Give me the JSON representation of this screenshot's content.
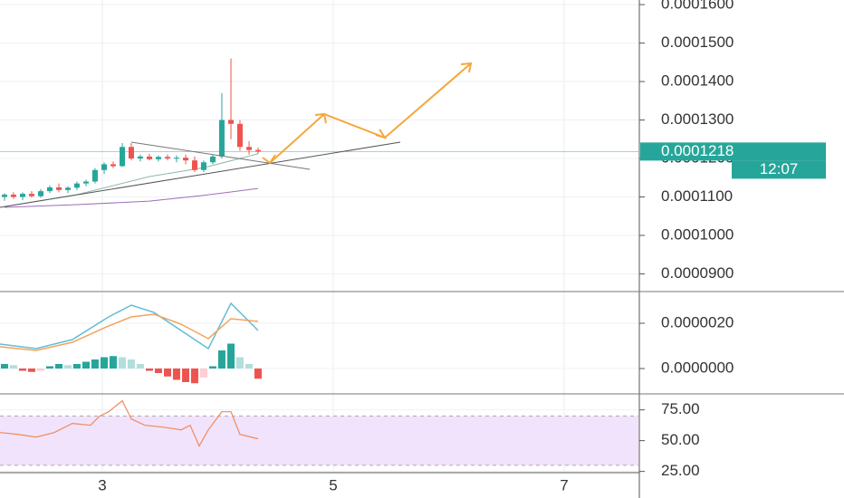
{
  "chart_data": [
    {
      "type": "candlestick",
      "x": [
        2.153,
        2.231,
        2.31,
        2.388,
        2.467,
        2.545,
        2.624,
        2.702,
        2.78,
        2.859,
        2.937,
        3.016,
        3.094,
        3.173,
        3.251,
        3.329,
        3.408,
        3.486,
        3.565,
        3.643,
        3.722,
        3.8,
        3.878,
        3.957,
        4.035,
        4.114,
        4.192,
        4.271,
        4.349
      ],
      "open": [
        0.00011,
        0.0001106,
        0.00011,
        0.0001108,
        0.0001102,
        0.0001115,
        0.0001125,
        0.0001118,
        0.0001124,
        0.0001135,
        0.000114,
        0.000117,
        0.0001185,
        0.000118,
        0.000123,
        0.00012,
        0.0001205,
        0.0001198,
        0.0001204,
        0.00012,
        0.0001202,
        0.0001195,
        0.000117,
        0.000119,
        0.0001205,
        0.00013,
        0.000129,
        0.000123,
        0.0001222
      ],
      "high": [
        0.000111,
        0.0001112,
        0.0001112,
        0.0001115,
        0.000112,
        0.000113,
        0.0001135,
        0.0001128,
        0.000114,
        0.0001145,
        0.0001175,
        0.000119,
        0.0001192,
        0.000124,
        0.000124,
        0.000121,
        0.0001212,
        0.0001208,
        0.000121,
        0.0001208,
        0.000121,
        0.0001205,
        0.0001195,
        0.000121,
        0.000137,
        0.000146,
        0.00013,
        0.0001245,
        0.0001228
      ],
      "low": [
        0.000109,
        0.0001095,
        0.0001092,
        0.0001098,
        0.0001098,
        0.000111,
        0.0001112,
        0.000111,
        0.0001118,
        0.0001128,
        0.0001135,
        0.000116,
        0.0001175,
        0.0001178,
        0.0001195,
        0.0001192,
        0.0001195,
        0.0001192,
        0.0001195,
        0.000119,
        0.0001185,
        0.0001165,
        0.0001165,
        0.0001185,
        0.00012,
        0.000125,
        0.000122,
        0.000121,
        0.0001212
      ],
      "close": [
        0.0001106,
        0.00011,
        0.0001108,
        0.0001102,
        0.0001115,
        0.0001125,
        0.0001118,
        0.0001124,
        0.0001135,
        0.000114,
        0.000117,
        0.0001185,
        0.000118,
        0.000123,
        0.00012,
        0.0001205,
        0.0001198,
        0.0001204,
        0.00012,
        0.0001202,
        0.0001195,
        0.000117,
        0.000119,
        0.0001205,
        0.00013,
        0.000129,
        0.000123,
        0.0001222,
        0.0001218
      ],
      "up_color": "#26a69a",
      "down_color": "#ef5350",
      "lines": [
        {
          "color": "#9c6fb8",
          "x": [
            2.153,
            2.78,
            3.408,
            3.878,
            4.349
          ],
          "values": [
            0.0001073,
            0.000108,
            0.0001089,
            0.0001104,
            0.0001122
          ]
        },
        {
          "color": "#8fb8a8",
          "x": [
            2.153,
            2.78,
            3.408,
            3.878,
            4.349
          ],
          "values": [
            0.0001075,
            0.0001106,
            0.0001153,
            0.0001176,
            0.0001212
          ]
        }
      ],
      "xlim": [
        2.114,
        7.643
      ],
      "xticks": [
        3,
        5,
        7
      ],
      "ylim": [
        8.54e-05,
        0.0001612
      ],
      "yticks": [
        {
          "value": 9e-05,
          "label": "0.0000900"
        },
        {
          "value": 0.0001,
          "label": "0.0001000"
        },
        {
          "value": 0.00011,
          "label": "0.0001100"
        },
        {
          "value": 0.00012,
          "label": "0.0001200"
        },
        {
          "value": 0.00013,
          "label": "0.0001300"
        },
        {
          "value": 0.00014,
          "label": "0.0001400"
        },
        {
          "value": 0.00015,
          "label": "0.0001500"
        },
        {
          "value": 0.00016,
          "label": "0.0001600"
        }
      ],
      "grid": true,
      "last_price": 0.0001218,
      "last_color": "#26a69a",
      "countdown": "12:07"
    },
    {
      "type": "macd",
      "x": [
        2.114,
        2.427,
        2.741,
        3.055,
        3.251,
        3.447,
        3.682,
        3.918,
        4.114,
        4.349
      ],
      "series": [
        {
          "color": "#62bcd6",
          "values": [
            1.08e-06,
            8.8e-07,
            1.28e-06,
            2.28e-06,
            2.8e-06,
            2.48e-06,
            1.68e-06,
            8.8e-07,
            2.88e-06,
            1.68e-06
          ]
        },
        {
          "color": "#f5a25d",
          "values": [
            9.6e-07,
            8e-07,
            1.16e-06,
            1.88e-06,
            2.28e-06,
            2.4e-06,
            1.96e-06,
            1.32e-06,
            2.2e-06,
            2.08e-06
          ]
        }
      ],
      "histogram": {
        "x": [
          2.153,
          2.231,
          2.31,
          2.388,
          2.467,
          2.545,
          2.624,
          2.702,
          2.78,
          2.859,
          2.937,
          3.016,
          3.094,
          3.173,
          3.251,
          3.329,
          3.408,
          3.486,
          3.565,
          3.643,
          3.722,
          3.8,
          3.878,
          3.957,
          4.035,
          4.114,
          4.192,
          4.271,
          4.349
        ],
        "values": [
          2e-07,
          1.5e-07,
          -1e-07,
          -1.5e-07,
          -1e-07,
          1e-07,
          2e-07,
          1.5e-07,
          2e-07,
          3e-07,
          4e-07,
          5e-07,
          5.5e-07,
          5e-07,
          4e-07,
          2e-07,
          -1e-07,
          -2e-07,
          -3.5e-07,
          -5e-07,
          -6e-07,
          -6.5e-07,
          -4e-07,
          1e-07,
          8e-07,
          1.1e-06,
          5e-07,
          2e-07,
          -4.5e-07
        ],
        "colors": [
          "#26a69a",
          "#b2dfdb",
          "#ef5350",
          "#ffcdd2"
        ]
      },
      "xlim": [
        2.114,
        7.643
      ],
      "xticks": [
        3,
        5,
        7
      ],
      "ylim": [
        -1.12e-06,
        3.4e-06
      ],
      "yticks": [
        {
          "value": 0,
          "label": "0.0000000"
        },
        {
          "value": 2e-06,
          "label": "0.0000020"
        }
      ],
      "grid": true
    },
    {
      "type": "line",
      "x": [
        2.114,
        2.271,
        2.427,
        2.584,
        2.741,
        2.898,
        2.976,
        3.055,
        3.173,
        3.251,
        3.369,
        3.525,
        3.682,
        3.761,
        3.839,
        3.918,
        4.035,
        4.114,
        4.192,
        4.349
      ],
      "values": [
        56.6,
        55.1,
        52.9,
        56.6,
        64,
        62.5,
        69.9,
        73.5,
        82.4,
        67.6,
        62.5,
        61,
        58.8,
        62.5,
        45.6,
        58.8,
        73.5,
        73.5,
        55.1,
        51.5
      ],
      "color": "#f08a5d",
      "band": [
        30,
        70
      ],
      "band_color": "#f1e3fb",
      "xlim": [
        2.114,
        7.643
      ],
      "xticks": [
        3,
        5,
        7
      ],
      "ylim": [
        24,
        88
      ],
      "yticks": [
        {
          "value": 25,
          "label": "25.00"
        },
        {
          "value": 50,
          "label": "50.00"
        },
        {
          "value": 75,
          "label": "75.00"
        }
      ],
      "grid": true
    }
  ]
}
